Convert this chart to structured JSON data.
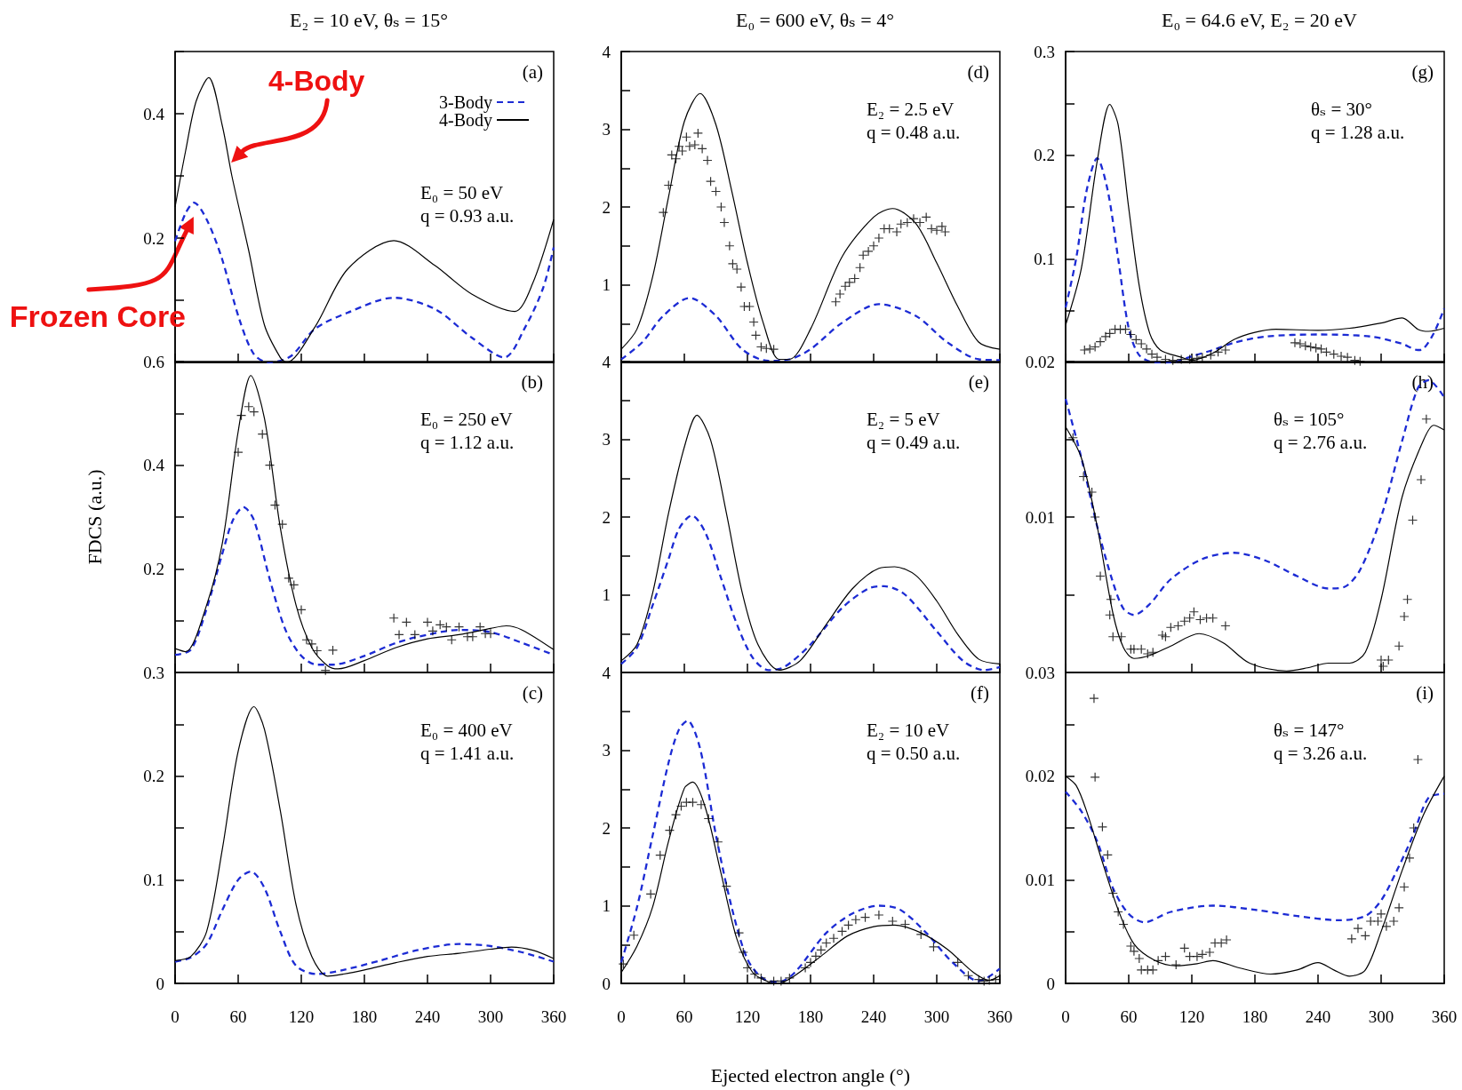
{
  "chart_data": [
    {
      "type": "line",
      "title": "E₂ = 10 eV, θₛ = 15°",
      "legend": "top right",
      "tick_labels": "y",
      "xlim": [
        0,
        360
      ],
      "xticks": [
        0,
        60,
        120,
        180,
        240,
        300,
        360
      ],
      "ylim": [
        0,
        0.5
      ],
      "yticks": [
        {
          "value": 0,
          "label": null
        },
        {
          "value": 0.1,
          "label": null
        },
        0.2,
        {
          "value": 0.3,
          "label": null
        },
        0.4,
        {
          "value": 0.5,
          "label": null
        }
      ],
      "annotations": [
        "(a)",
        "E₀ = 50 eV",
        "q = 0.93 a.u.",
        {
          "text": "4-Body",
          "x": 50,
          "y": 0.31
        },
        {
          "text": "Frozen Core",
          "x": 21,
          "y": 0.24
        }
      ],
      "series": [
        {
          "name": "3-Body",
          "color": "#1c2bd4",
          "line_style": "dashed",
          "x": [
            0,
            10,
            18,
            30,
            44,
            61,
            75,
            89,
            110,
            133,
            164,
            208,
            247,
            282,
            313,
            333,
            350,
            360
          ],
          "values": [
            0.195,
            0.24,
            0.257,
            0.23,
            0.17,
            0.07,
            0.013,
            0,
            0.01,
            0.054,
            0.08,
            0.104,
            0.086,
            0.04,
            0.008,
            0.057,
            0.12,
            0.185
          ]
        },
        {
          "name": "4-Body",
          "color": "#000000",
          "line_style": "solid",
          "x": [
            0,
            10,
            20,
            32,
            45,
            54,
            70,
            85,
            100,
            106,
            133,
            164,
            208,
            247,
            282,
            323,
            340,
            360
          ],
          "values": [
            0.25,
            0.34,
            0.42,
            0.458,
            0.38,
            0.3,
            0.18,
            0.06,
            0.008,
            0,
            0.057,
            0.15,
            0.196,
            0.156,
            0.11,
            0.082,
            0.127,
            0.23
          ]
        }
      ]
    },
    {
      "type": "line",
      "ylabel": "FDCS (a.u.)",
      "tick_labels": "y",
      "xlim": [
        0,
        360
      ],
      "xticks": [
        0,
        60,
        120,
        180,
        240,
        300,
        360
      ],
      "ylim": [
        0,
        0.6
      ],
      "yticks": [
        {
          "value": 0,
          "label": null
        },
        {
          "value": 0.1,
          "label": null
        },
        0.2,
        {
          "value": 0.3,
          "label": null
        },
        0.4,
        {
          "value": 0.5,
          "label": null
        },
        0.6
      ],
      "annotations": [
        "(b)",
        "E₀ = 250 eV",
        "q = 1.12 a.u."
      ],
      "series": [
        {
          "color": "#1c2bd4",
          "line_style": "dashed",
          "x": [
            0,
            15,
            30,
            45,
            55,
            65,
            75,
            90,
            105,
            120,
            135,
            150,
            180,
            210,
            240,
            270,
            300,
            330,
            360
          ],
          "values": [
            0.034,
            0.044,
            0.123,
            0.23,
            0.294,
            0.319,
            0.294,
            0.18,
            0.082,
            0.032,
            0.015,
            0.015,
            0.032,
            0.057,
            0.073,
            0.082,
            0.078,
            0.057,
            0.034
          ]
        },
        {
          "color": "#000000",
          "line_style": "solid",
          "x": [
            0,
            10,
            30,
            45,
            60,
            72,
            85,
            100,
            115,
            130,
            145,
            155,
            180,
            210,
            240,
            270,
            300,
            315,
            330,
            360
          ],
          "values": [
            0.046,
            0.04,
            0.13,
            0.25,
            0.465,
            0.573,
            0.49,
            0.28,
            0.13,
            0.048,
            0.013,
            0.007,
            0.023,
            0.048,
            0.065,
            0.073,
            0.085,
            0.09,
            0.082,
            0.044
          ]
        },
        {
          "type": "scatter",
          "color": "#000000",
          "marker": "cross",
          "x": [
            60,
            63,
            70,
            75,
            83,
            90,
            95,
            102,
            108,
            113,
            120,
            125,
            130,
            135,
            143,
            150,
            208,
            213,
            220,
            228,
            240,
            245,
            252,
            258,
            263,
            270,
            278,
            283,
            290,
            295,
            300
          ],
          "values": [
            0.425,
            0.496,
            0.513,
            0.503,
            0.46,
            0.4,
            0.323,
            0.286,
            0.182,
            0.169,
            0.121,
            0.063,
            0.055,
            0.042,
            0.004,
            0.043,
            0.105,
            0.073,
            0.097,
            0.073,
            0.097,
            0.08,
            0.092,
            0.088,
            0.063,
            0.088,
            0.069,
            0.069,
            0.088,
            0.075,
            0.075
          ]
        }
      ]
    },
    {
      "type": "line",
      "xlim": [
        0,
        360
      ],
      "xticks": [
        0,
        60,
        120,
        180,
        240,
        300,
        360
      ],
      "ylim": [
        0,
        0.3
      ],
      "yticks": [
        0,
        {
          "value": 0.05,
          "label": null
        },
        0.1,
        {
          "value": 0.15,
          "label": null
        },
        0.2,
        {
          "value": 0.25,
          "label": null
        },
        0.3
      ],
      "annotations": [
        "(c)",
        "E₀ = 400 eV",
        "q = 1.41 a.u."
      ],
      "series": [
        {
          "color": "#1c2bd4",
          "line_style": "dashed",
          "x": [
            0,
            15,
            30,
            45,
            60,
            72,
            85,
            100,
            115,
            135,
            160,
            195,
            230,
            270,
            300,
            330,
            360
          ],
          "values": [
            0.021,
            0.025,
            0.038,
            0.071,
            0.1,
            0.108,
            0.092,
            0.05,
            0.017,
            0.009,
            0.013,
            0.022,
            0.032,
            0.038,
            0.036,
            0.03,
            0.021
          ]
        },
        {
          "color": "#000000",
          "line_style": "solid",
          "x": [
            0,
            15,
            30,
            45,
            60,
            75,
            85,
            100,
            115,
            130,
            145,
            160,
            180,
            210,
            240,
            270,
            300,
            320,
            340,
            360
          ],
          "values": [
            0.022,
            0.026,
            0.05,
            0.13,
            0.224,
            0.267,
            0.245,
            0.167,
            0.076,
            0.026,
            0.007,
            0.009,
            0.013,
            0.02,
            0.026,
            0.029,
            0.033,
            0.035,
            0.032,
            0.024
          ]
        }
      ]
    },
    {
      "type": "line",
      "title": "E₀ = 600 eV, θₛ = 4°",
      "tick_labels": "y",
      "xlim": [
        0,
        360
      ],
      "xticks": [
        0,
        60,
        120,
        180,
        240,
        300,
        360
      ],
      "ylim": [
        0,
        4
      ],
      "yticks": [
        {
          "value": 0,
          "label": null
        },
        {
          "value": 0.5,
          "label": null
        },
        1,
        {
          "value": 1.5,
          "label": null
        },
        2,
        {
          "value": 2.5,
          "label": null
        },
        3,
        {
          "value": 3.5,
          "label": null
        },
        4
      ],
      "annotations": [
        "(d)",
        "E₂ = 2.5 eV",
        "q = 0.48 a.u."
      ],
      "series": [
        {
          "color": "#1c2bd4",
          "line_style": "dashed",
          "x": [
            0,
            20,
            40,
            65,
            90,
            115,
            140,
            160,
            180,
            210,
            245,
            280,
            310,
            340,
            360
          ],
          "values": [
            0.04,
            0.26,
            0.6,
            0.83,
            0.6,
            0.17,
            0.02,
            0.04,
            0.17,
            0.51,
            0.75,
            0.6,
            0.26,
            0.04,
            0.03
          ]
        },
        {
          "color": "#000000",
          "line_style": "solid",
          "x": [
            0,
            15,
            30,
            45,
            60,
            75,
            90,
            105,
            120,
            135,
            150,
            160,
            180,
            210,
            240,
            258,
            280,
            300,
            320,
            340,
            360
          ],
          "values": [
            0.17,
            0.43,
            1.11,
            2.13,
            3.1,
            3.46,
            3.06,
            2.21,
            1.28,
            0.51,
            0.04,
            0.04,
            0.43,
            1.36,
            1.87,
            1.98,
            1.79,
            1.28,
            0.72,
            0.26,
            0.17
          ]
        },
        {
          "type": "scatter",
          "color": "#000000",
          "marker": "cross",
          "x": [
            40,
            45,
            48,
            52,
            55,
            58,
            62,
            65,
            70,
            73,
            77,
            82,
            85,
            90,
            95,
            98,
            103,
            106,
            110,
            114,
            117,
            122,
            126,
            128,
            133,
            138,
            145,
            204,
            208,
            213,
            217,
            222,
            227,
            230,
            235,
            240,
            245,
            250,
            255,
            262,
            266,
            272,
            278,
            284,
            290,
            295,
            300,
            305,
            308
          ],
          "values": [
            1.93,
            2.28,
            2.67,
            2.62,
            2.78,
            2.72,
            2.9,
            2.78,
            2.8,
            2.95,
            2.75,
            2.6,
            2.33,
            2.2,
            2.0,
            1.8,
            1.5,
            1.27,
            1.2,
            0.97,
            0.72,
            0.72,
            0.52,
            0.35,
            0.2,
            0.18,
            0.17,
            0.78,
            0.88,
            0.98,
            1.03,
            1.08,
            1.22,
            1.38,
            1.43,
            1.5,
            1.6,
            1.72,
            1.72,
            1.68,
            1.78,
            1.8,
            1.85,
            1.8,
            1.87,
            1.72,
            1.7,
            1.75,
            1.68
          ]
        }
      ]
    },
    {
      "type": "line",
      "tick_labels": "y",
      "xlim": [
        0,
        360
      ],
      "xticks": [
        0,
        60,
        120,
        180,
        240,
        300,
        360
      ],
      "ylim": [
        0,
        4
      ],
      "yticks": [
        {
          "value": 0,
          "label": null
        },
        {
          "value": 0.5,
          "label": null
        },
        1,
        {
          "value": 1.5,
          "label": null
        },
        2,
        {
          "value": 2.5,
          "label": null
        },
        3,
        {
          "value": 3.5,
          "label": null
        },
        4
      ],
      "annotations": [
        "(e)",
        "E₂ = 5 eV",
        "q = 0.49 a.u."
      ],
      "series": [
        {
          "color": "#1c2bd4",
          "line_style": "dashed",
          "x": [
            0,
            15,
            30,
            45,
            55,
            67,
            80,
            95,
            110,
            125,
            140,
            155,
            180,
            210,
            235,
            250,
            270,
            300,
            325,
            345,
            360
          ],
          "values": [
            0.11,
            0.32,
            0.87,
            1.46,
            1.85,
            2.02,
            1.8,
            1.21,
            0.62,
            0.19,
            0.03,
            0.07,
            0.36,
            0.83,
            1.08,
            1.11,
            1.0,
            0.53,
            0.15,
            0.03,
            0.07
          ]
        },
        {
          "color": "#000000",
          "line_style": "solid",
          "x": [
            0,
            15,
            30,
            45,
            60,
            72,
            85,
            100,
            115,
            130,
            150,
            170,
            195,
            220,
            245,
            260,
            280,
            300,
            320,
            340,
            360
          ],
          "values": [
            0.15,
            0.36,
            1.03,
            2.05,
            2.9,
            3.31,
            2.99,
            2.05,
            1.03,
            0.36,
            0.03,
            0.15,
            0.62,
            1.08,
            1.34,
            1.36,
            1.25,
            0.92,
            0.49,
            0.17,
            0.11
          ]
        }
      ]
    },
    {
      "type": "line",
      "xlabel": "Ejected electron angle (°)",
      "xlim": [
        0,
        360
      ],
      "xticks": [
        0,
        60,
        120,
        180,
        240,
        300,
        360
      ],
      "ylim": [
        0,
        4
      ],
      "yticks": [
        0,
        {
          "value": 0.5,
          "label": null
        },
        1,
        {
          "value": 1.5,
          "label": null
        },
        2,
        {
          "value": 2.5,
          "label": null
        },
        3,
        {
          "value": 3.5,
          "label": null
        },
        4
      ],
      "annotations": [
        "(f)",
        "E₂ = 10 eV",
        "q = 0.50 a.u."
      ],
      "series": [
        {
          "color": "#1c2bd4",
          "line_style": "dashed",
          "x": [
            0,
            15,
            30,
            45,
            55,
            63,
            75,
            90,
            105,
            120,
            135,
            150,
            165,
            195,
            220,
            245,
            265,
            290,
            315,
            340,
            360
          ],
          "values": [
            0.27,
            0.98,
            1.91,
            2.84,
            3.27,
            3.38,
            3.02,
            1.91,
            0.98,
            0.31,
            0.06,
            0.02,
            0.14,
            0.65,
            0.9,
            1.0,
            0.95,
            0.65,
            0.27,
            0.03,
            0.19
          ]
        },
        {
          "color": "#000000",
          "line_style": "solid",
          "x": [
            0,
            15,
            30,
            45,
            60,
            68,
            80,
            95,
            110,
            125,
            140,
            150,
            165,
            190,
            215,
            240,
            260,
            285,
            310,
            335,
            350,
            360
          ],
          "values": [
            0.14,
            0.48,
            0.99,
            1.83,
            2.51,
            2.59,
            2.26,
            1.41,
            0.57,
            0.14,
            0.02,
            0,
            0.1,
            0.35,
            0.61,
            0.73,
            0.75,
            0.65,
            0.44,
            0.14,
            0.04,
            0.1
          ]
        },
        {
          "type": "scatter",
          "color": "#000000",
          "marker": "cross",
          "x": [
            2,
            12,
            28,
            37,
            46,
            52,
            57,
            62,
            68,
            76,
            83,
            92,
            100,
            112,
            116,
            120,
            127,
            133,
            145,
            152,
            160,
            175,
            180,
            185,
            190,
            195,
            202,
            210,
            216,
            223,
            232,
            245,
            258,
            270,
            285,
            297,
            320,
            330,
            340,
            345,
            350,
            356
          ],
          "values": [
            0.25,
            0.62,
            1.15,
            1.65,
            1.97,
            2.17,
            2.28,
            2.33,
            2.33,
            2.3,
            2.12,
            1.82,
            1.25,
            0.65,
            0.4,
            0.2,
            0.12,
            0.07,
            0.03,
            0.03,
            0.07,
            0.2,
            0.27,
            0.35,
            0.43,
            0.52,
            0.58,
            0.67,
            0.75,
            0.82,
            0.85,
            0.88,
            0.8,
            0.76,
            0.63,
            0.47,
            0.27,
            0.1,
            0.05,
            0.03,
            0.04,
            0.05
          ]
        }
      ]
    },
    {
      "type": "line",
      "title": "E₀ = 64.6 eV, E₂ = 20 eV",
      "tick_labels": "y",
      "xlim": [
        0,
        360
      ],
      "xticks": [
        0,
        60,
        120,
        180,
        240,
        300,
        360
      ],
      "ylim": [
        0,
        0.3
      ],
      "yticks": [
        {
          "value": 0,
          "label": null
        },
        {
          "value": 0.05,
          "label": null
        },
        0.1,
        {
          "value": 0.15,
          "label": null
        },
        0.2,
        {
          "value": 0.25,
          "label": null
        },
        0.3
      ],
      "annotations": [
        "(g)",
        "θₛ = 30°",
        "q = 1.28 a.u."
      ],
      "series": [
        {
          "color": "#1c2bd4",
          "line_style": "dashed",
          "x": [
            0,
            10,
            20,
            30,
            40,
            50,
            60,
            70,
            85,
            100,
            120,
            140,
            160,
            190,
            240,
            290,
            320,
            335,
            340,
            350,
            360
          ],
          "values": [
            0.053,
            0.1,
            0.166,
            0.197,
            0.166,
            0.1,
            0.033,
            0.007,
            0,
            0,
            0.006,
            0.012,
            0.019,
            0.025,
            0.027,
            0.025,
            0.018,
            0.012,
            0.013,
            0.028,
            0.052
          ]
        },
        {
          "color": "#000000",
          "line_style": "solid",
          "x": [
            0,
            15,
            30,
            42,
            50,
            60,
            70,
            80,
            90,
            110,
            120,
            140,
            160,
            180,
            200,
            240,
            270,
            300,
            320,
            335,
            345,
            360
          ],
          "values": [
            0.036,
            0.091,
            0.194,
            0.249,
            0.229,
            0.149,
            0.074,
            0.028,
            0.012,
            0.005,
            0.002,
            0.009,
            0.022,
            0.029,
            0.032,
            0.031,
            0.033,
            0.038,
            0.043,
            0.032,
            0.03,
            0.033
          ]
        },
        {
          "type": "scatter",
          "color": "#000000",
          "marker": "cross",
          "x": [
            18,
            23,
            28,
            33,
            38,
            42,
            47,
            52,
            57,
            62,
            67,
            72,
            77,
            82,
            87,
            95,
            102,
            110,
            118,
            125,
            130,
            138,
            145,
            152,
            218,
            223,
            228,
            233,
            238,
            243,
            248,
            255,
            262,
            268,
            275,
            280
          ],
          "values": [
            0.012,
            0.013,
            0.015,
            0.02,
            0.025,
            0.028,
            0.032,
            0.032,
            0.032,
            0.027,
            0.022,
            0.018,
            0.013,
            0.008,
            0.005,
            0.003,
            0.002,
            0.003,
            0.003,
            0.004,
            0.005,
            0.007,
            0.01,
            0.012,
            0.019,
            0.018,
            0.016,
            0.015,
            0.014,
            0.013,
            0.01,
            0.008,
            0.006,
            0.005,
            0.002,
            0.001
          ]
        }
      ]
    },
    {
      "type": "line",
      "tick_labels": "y",
      "xlim": [
        0,
        360
      ],
      "xticks": [
        0,
        60,
        120,
        180,
        240,
        300,
        360
      ],
      "ylim": [
        0,
        0.02
      ],
      "yticks": [
        {
          "value": 0,
          "label": null
        },
        {
          "value": 0.005,
          "label": null
        },
        0.01,
        {
          "value": 0.015,
          "label": null
        },
        0.02
      ],
      "annotations": [
        "(h)",
        "θₛ = 105°",
        "q = 2.76 a.u."
      ],
      "series": [
        {
          "color": "#1c2bd4",
          "line_style": "dashed",
          "x": [
            0,
            15,
            30,
            45,
            55,
            65,
            80,
            100,
            130,
            160,
            190,
            220,
            250,
            265,
            280,
            300,
            320,
            335,
            345,
            360
          ],
          "values": [
            0.0176,
            0.0138,
            0.0094,
            0.0058,
            0.0041,
            0.0037,
            0.0044,
            0.006,
            0.0073,
            0.0077,
            0.0072,
            0.0062,
            0.0054,
            0.0055,
            0.0066,
            0.01,
            0.0149,
            0.0183,
            0.0188,
            0.0177
          ]
        },
        {
          "color": "#000000",
          "line_style": "solid",
          "x": [
            0,
            15,
            30,
            45,
            55,
            65,
            80,
            100,
            127,
            150,
            175,
            210,
            230,
            250,
            270,
            285,
            300,
            320,
            340,
            350,
            360
          ],
          "values": [
            0.0158,
            0.0138,
            0.0094,
            0.0038,
            0.0016,
            0.0009,
            0.0011,
            0.0017,
            0.0025,
            0.0019,
            0.0006,
            0.0001,
            0.0003,
            0.0006,
            0.0006,
            0.0013,
            0.0047,
            0.0113,
            0.0149,
            0.0159,
            0.0156
          ]
        },
        {
          "type": "scatter",
          "color": "#000000",
          "marker": "cross",
          "x": [
            7,
            17,
            25,
            28,
            33,
            42,
            43,
            45,
            53,
            62,
            65,
            72,
            78,
            83,
            92,
            95,
            100,
            107,
            113,
            118,
            122,
            128,
            134,
            140,
            152,
            300,
            302,
            307,
            317,
            322,
            325,
            330,
            338,
            343
          ],
          "values": [
            0.0151,
            0.0126,
            0.0116,
            0.01,
            0.0062,
            0.0037,
            0.0047,
            0.0023,
            0.0023,
            0.0015,
            0.0015,
            0.0015,
            0.0012,
            0.0013,
            0.0024,
            0.0023,
            0.0029,
            0.003,
            0.0033,
            0.0035,
            0.0039,
            0.0034,
            0.0035,
            0.0035,
            0.003,
            0.0008,
            0.0004,
            0.0008,
            0.0017,
            0.0036,
            0.0047,
            0.0098,
            0.0124,
            0.0163
          ]
        }
      ]
    },
    {
      "type": "line",
      "xlim": [
        0,
        360
      ],
      "xticks": [
        0,
        60,
        120,
        180,
        240,
        300,
        360
      ],
      "ylim": [
        0,
        0.03
      ],
      "yticks": [
        0,
        {
          "value": 0.005,
          "label": null
        },
        0.01,
        {
          "value": 0.015,
          "label": null
        },
        0.02,
        {
          "value": 0.025,
          "label": null
        },
        0.03
      ],
      "annotations": [
        "(i)",
        "θₛ = 147°",
        "q = 3.26 a.u."
      ],
      "series": [
        {
          "color": "#1c2bd4",
          "line_style": "dashed",
          "x": [
            0,
            15,
            30,
            45,
            60,
            75,
            100,
            140,
            180,
            220,
            260,
            285,
            300,
            315,
            330,
            345,
            360
          ],
          "values": [
            0.0185,
            0.0166,
            0.0137,
            0.0092,
            0.0067,
            0.0059,
            0.0069,
            0.0075,
            0.0071,
            0.0065,
            0.0061,
            0.0065,
            0.008,
            0.0109,
            0.0142,
            0.0179,
            0.0183
          ]
        },
        {
          "color": "#000000",
          "line_style": "solid",
          "x": [
            0,
            10,
            20,
            35,
            50,
            65,
            85,
            105,
            125,
            140,
            165,
            195,
            220,
            240,
            255,
            270,
            285,
            300,
            320,
            340,
            360
          ],
          "values": [
            0.02,
            0.0191,
            0.0166,
            0.0117,
            0.0071,
            0.0038,
            0.0022,
            0.0017,
            0.0019,
            0.0022,
            0.0015,
            0.0009,
            0.0013,
            0.002,
            0.0013,
            0.0007,
            0.0013,
            0.005,
            0.0109,
            0.0162,
            0.02
          ]
        },
        {
          "type": "scatter",
          "color": "#000000",
          "marker": "cross",
          "x": [
            27,
            28,
            35,
            40,
            45,
            50,
            55,
            62,
            65,
            70,
            72,
            78,
            83,
            88,
            95,
            105,
            113,
            118,
            125,
            130,
            137,
            142,
            148,
            153,
            272,
            278,
            285,
            290,
            297,
            300,
            305,
            312,
            317,
            322,
            327,
            331,
            335
          ],
          "values": [
            0.0275,
            0.0199,
            0.0151,
            0.0124,
            0.0087,
            0.0069,
            0.0057,
            0.0036,
            0.0031,
            0.0024,
            0.0013,
            0.0013,
            0.0013,
            0.0022,
            0.0026,
            0.0018,
            0.0034,
            0.0026,
            0.0026,
            0.0028,
            0.003,
            0.0039,
            0.0039,
            0.0042,
            0.0043,
            0.0053,
            0.0046,
            0.006,
            0.006,
            0.0067,
            0.0055,
            0.006,
            0.0073,
            0.0093,
            0.0121,
            0.015,
            0.0216
          ]
        }
      ]
    }
  ]
}
